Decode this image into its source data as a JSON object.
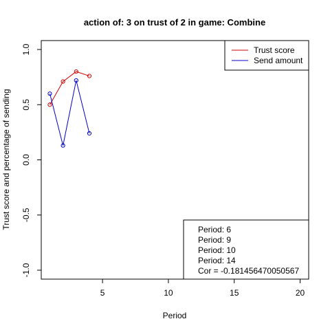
{
  "chart_data": {
    "type": "line",
    "title": "action of:  3  on trust of  2 in game:  Combine",
    "xlabel": "Period",
    "ylabel": "Trust score and percentage of sending",
    "xlim": [
      1,
      20
    ],
    "ylim": [
      -1,
      1
    ],
    "xticks": [
      5,
      10,
      15,
      20
    ],
    "yticks": [
      -1.0,
      -0.5,
      0.0,
      0.5,
      1.0
    ],
    "grid": false,
    "legend_position": "top-right",
    "series": [
      {
        "name": "Trust score",
        "color": "#cc0000",
        "x": [
          1,
          2,
          3,
          4
        ],
        "y": [
          0.5,
          0.71,
          0.8,
          0.76
        ]
      },
      {
        "name": "Send amount",
        "color": "#0000cc",
        "x": [
          1,
          2,
          3,
          4
        ],
        "y": [
          0.6,
          0.13,
          0.72,
          0.24
        ]
      }
    ],
    "annotation": {
      "position": "bottom-right",
      "lines": [
        "Period:  6",
        "Period:  9",
        "Period:  10",
        "Period:  14",
        "Cor =  -0.181456470050567"
      ]
    }
  }
}
